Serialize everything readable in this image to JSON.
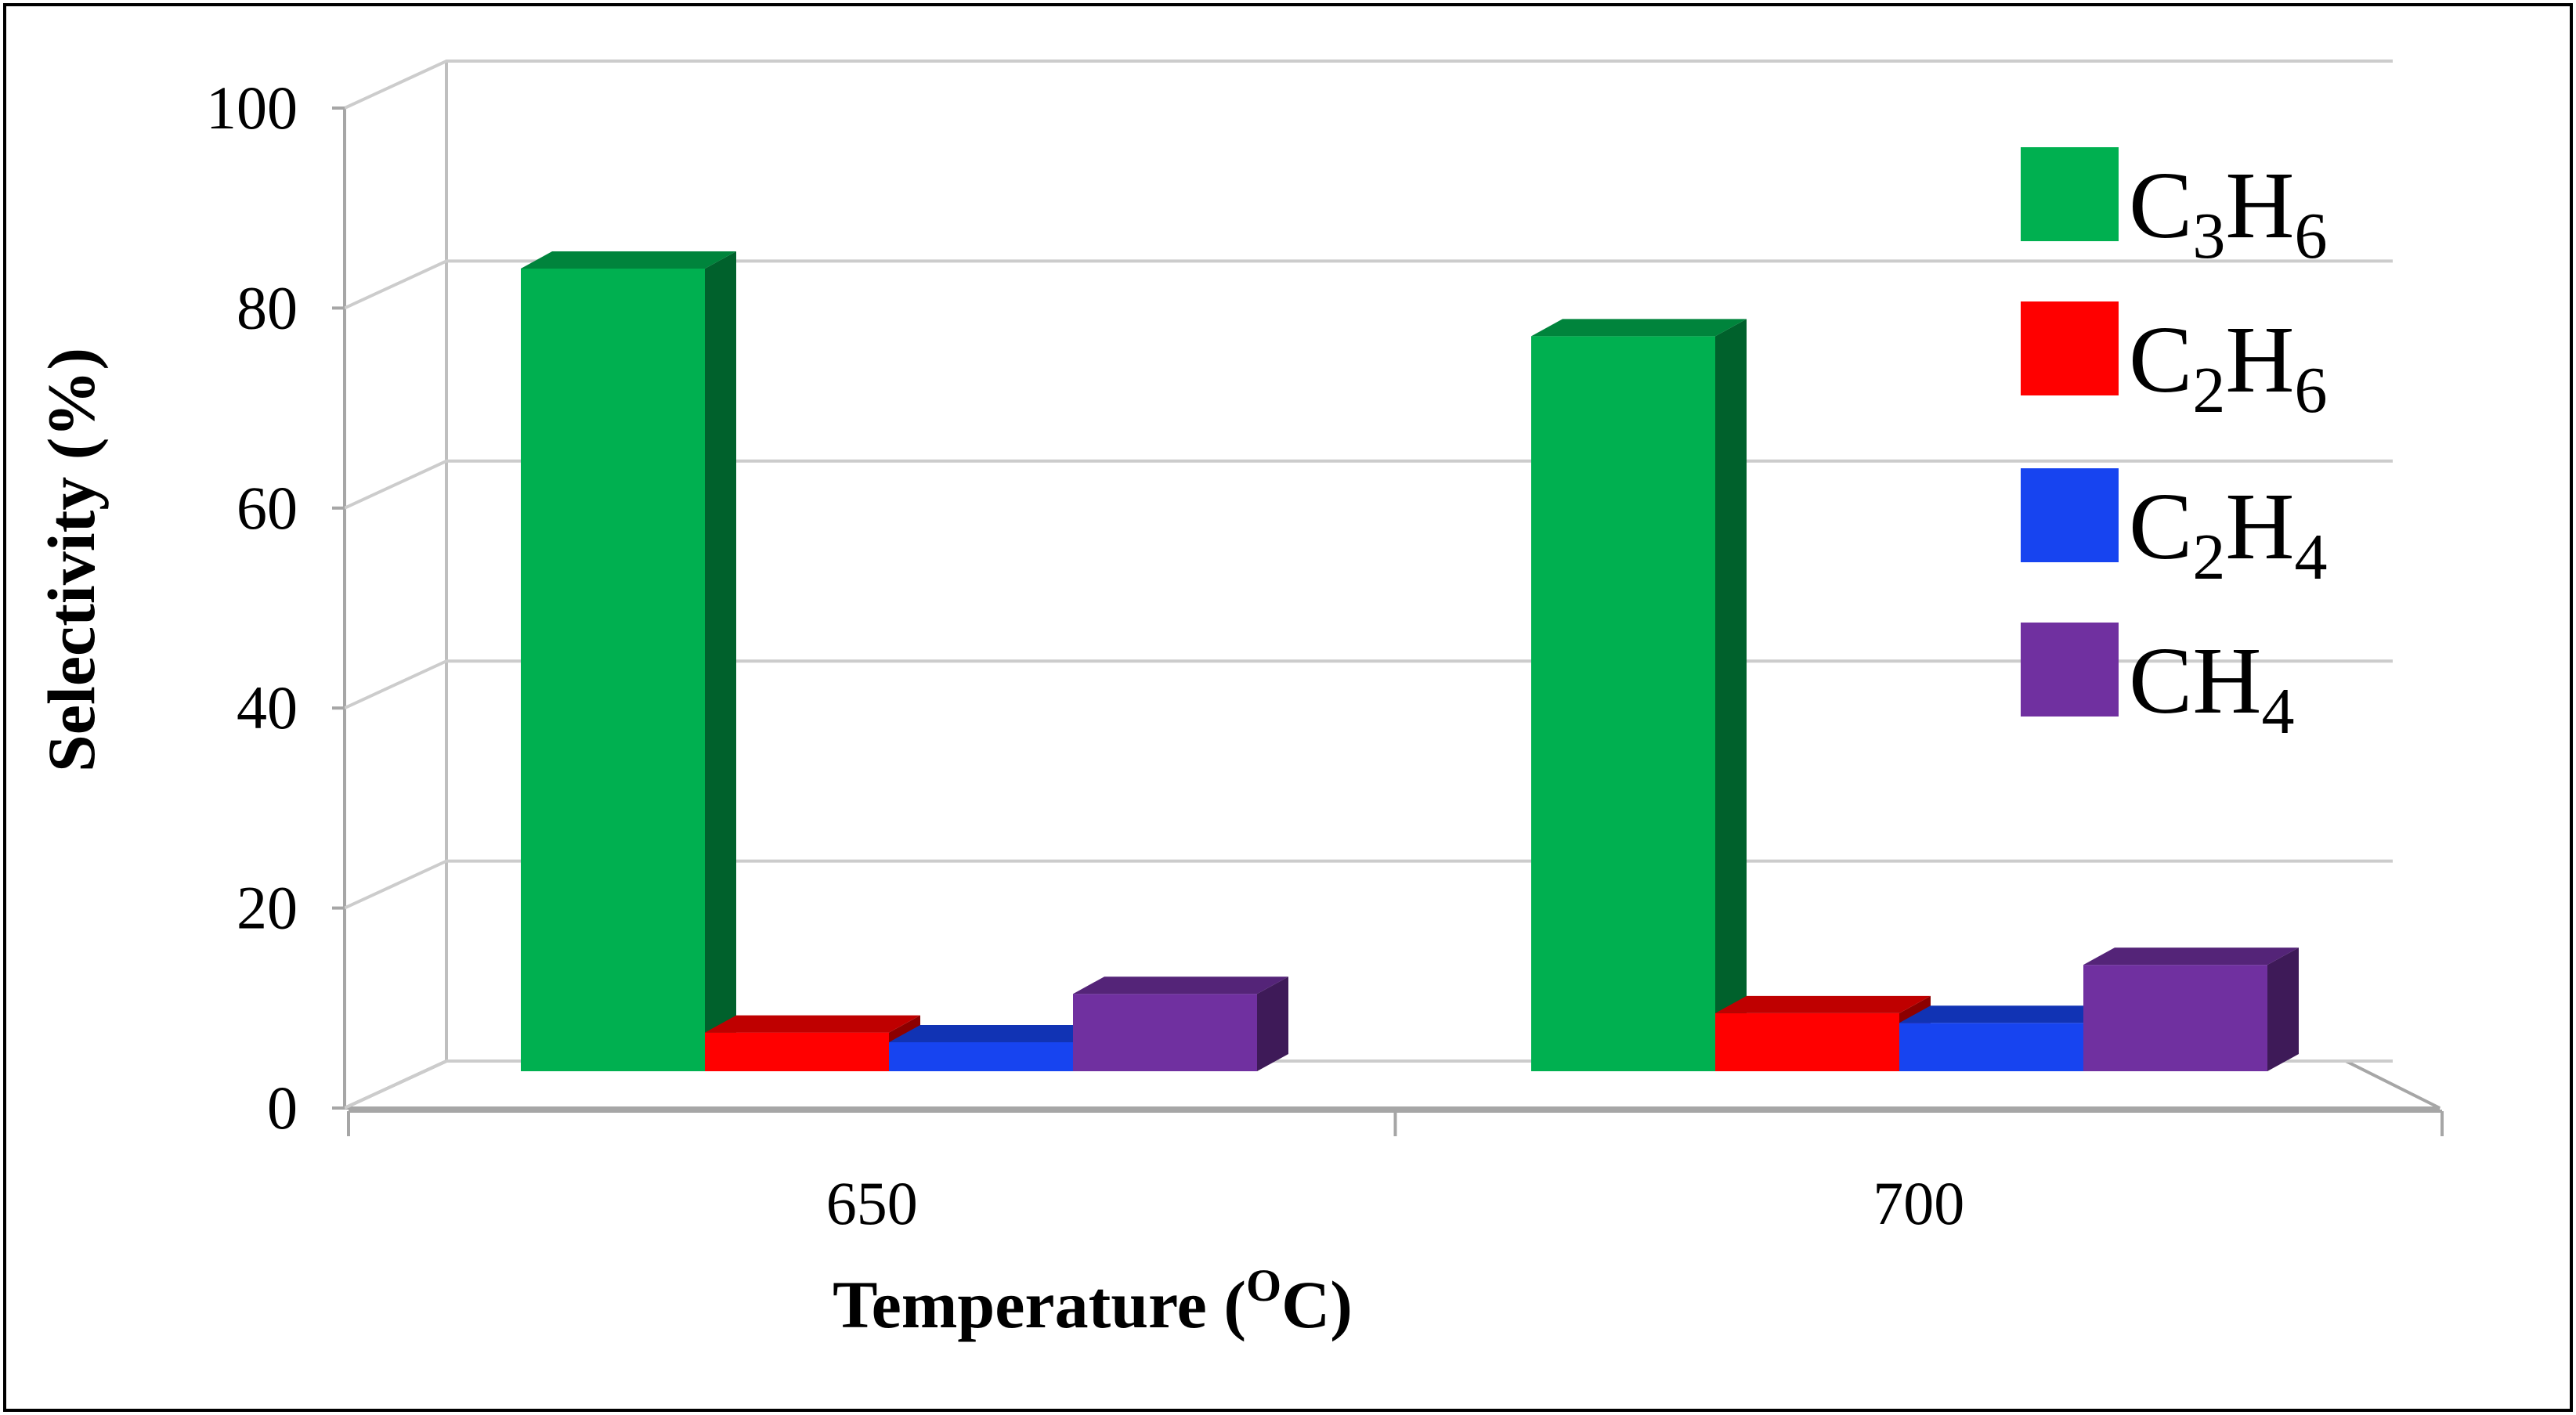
{
  "chart_data": {
    "type": "bar",
    "title": "",
    "xlabel": "Temperature (",
    "xlabel_sup": "O",
    "xlabel_end": "C)",
    "ylabel": "Selectivity (%)",
    "ylim": [
      0,
      100
    ],
    "yticks": [
      0,
      20,
      40,
      60,
      80,
      100
    ],
    "categories": [
      "650",
      "700"
    ],
    "series": [
      {
        "name": "C3H6",
        "color": "#00b050",
        "values": [
          83,
          76
        ]
      },
      {
        "name": "C2H6",
        "color": "#ff0000",
        "values": [
          4,
          6
        ]
      },
      {
        "name": "C2H4",
        "color": "#1744f0",
        "values": [
          3,
          5
        ]
      },
      {
        "name": "CH4",
        "color": "#7030a0",
        "values": [
          8,
          11
        ]
      }
    ],
    "legend": {
      "placement": "top-right",
      "entries": [
        {
          "main": "C",
          "sub1": "3",
          "mid": "H",
          "sub2": "6"
        },
        {
          "main": "C",
          "sub1": "2",
          "mid": "H",
          "sub2": "6"
        },
        {
          "main": "C",
          "sub1": "2",
          "mid": "H",
          "sub2": "4"
        },
        {
          "main": "CH",
          "sub1": "4",
          "mid": "",
          "sub2": ""
        }
      ]
    },
    "grid": true,
    "style": "3d-clustered-column"
  }
}
